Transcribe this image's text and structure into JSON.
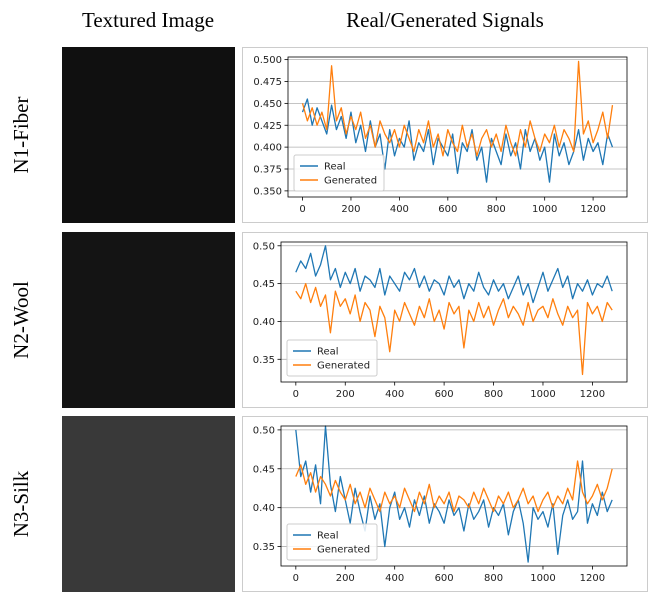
{
  "headers": [
    "Textured Image",
    "Real/Generated Signals"
  ],
  "chart_data": [
    {
      "type": "line",
      "label": "N1-Fiber",
      "texture_color": "#101010",
      "grid": true,
      "legend": "lower left",
      "x": [
        0,
        20,
        40,
        60,
        80,
        100,
        120,
        140,
        160,
        180,
        200,
        220,
        240,
        260,
        280,
        300,
        320,
        340,
        360,
        380,
        400,
        420,
        440,
        460,
        480,
        500,
        520,
        540,
        560,
        580,
        600,
        620,
        640,
        660,
        680,
        700,
        720,
        740,
        760,
        780,
        800,
        820,
        840,
        860,
        880,
        900,
        920,
        940,
        960,
        980,
        1000,
        1020,
        1040,
        1060,
        1080,
        1100,
        1120,
        1140,
        1160,
        1180,
        1200,
        1220,
        1240,
        1260,
        1280
      ],
      "xlim": [
        -60,
        1340
      ],
      "xticks": [
        0,
        200,
        400,
        600,
        800,
        1000,
        1200
      ],
      "ylim": [
        0.343,
        0.503
      ],
      "yticks": [
        {
          "value": 0.35,
          "label": "0.350"
        },
        0.375,
        {
          "value": 0.4,
          "label": "0.400"
        },
        0.425,
        {
          "value": 0.45,
          "label": "0.450"
        },
        0.475,
        {
          "value": 0.5,
          "label": "0.500"
        }
      ],
      "series": [
        {
          "name": "Real",
          "color": "#1f77b4",
          "values": [
            0.44,
            0.455,
            0.425,
            0.445,
            0.43,
            0.415,
            0.448,
            0.42,
            0.435,
            0.41,
            0.44,
            0.405,
            0.425,
            0.395,
            0.43,
            0.4,
            0.415,
            0.375,
            0.42,
            0.39,
            0.41,
            0.4,
            0.43,
            0.385,
            0.405,
            0.395,
            0.42,
            0.38,
            0.41,
            0.4,
            0.39,
            0.415,
            0.37,
            0.405,
            0.395,
            0.42,
            0.385,
            0.4,
            0.36,
            0.41,
            0.395,
            0.38,
            0.415,
            0.39,
            0.405,
            0.375,
            0.42,
            0.395,
            0.41,
            0.385,
            0.4,
            0.36,
            0.415,
            0.39,
            0.405,
            0.38,
            0.395,
            0.42,
            0.385,
            0.41,
            0.395,
            0.405,
            0.38,
            0.415,
            0.4
          ]
        },
        {
          "name": "Generated",
          "color": "#ff7f0e",
          "values": [
            0.45,
            0.43,
            0.445,
            0.425,
            0.44,
            0.42,
            0.493,
            0.43,
            0.445,
            0.415,
            0.435,
            0.42,
            0.44,
            0.41,
            0.425,
            0.4,
            0.43,
            0.415,
            0.405,
            0.42,
            0.4,
            0.425,
            0.41,
            0.395,
            0.42,
            0.405,
            0.43,
            0.4,
            0.415,
            0.39,
            0.42,
            0.405,
            0.395,
            0.425,
            0.4,
            0.415,
            0.39,
            0.41,
            0.42,
            0.4,
            0.415,
            0.395,
            0.425,
            0.405,
            0.39,
            0.42,
            0.4,
            0.43,
            0.41,
            0.395,
            0.415,
            0.405,
            0.425,
            0.4,
            0.42,
            0.41,
            0.395,
            0.498,
            0.415,
            0.43,
            0.405,
            0.42,
            0.44,
            0.41,
            0.448
          ]
        }
      ]
    },
    {
      "type": "line",
      "label": "N2-Wool",
      "texture_color": "#141414",
      "grid": true,
      "legend": "lower left",
      "x": [
        0,
        20,
        40,
        60,
        80,
        100,
        120,
        140,
        160,
        180,
        200,
        220,
        240,
        260,
        280,
        300,
        320,
        340,
        360,
        380,
        400,
        420,
        440,
        460,
        480,
        500,
        520,
        540,
        560,
        580,
        600,
        620,
        640,
        660,
        680,
        700,
        720,
        740,
        760,
        780,
        800,
        820,
        840,
        860,
        880,
        900,
        920,
        940,
        960,
        980,
        1000,
        1020,
        1040,
        1060,
        1080,
        1100,
        1120,
        1140,
        1160,
        1180,
        1200,
        1220,
        1240,
        1260,
        1280
      ],
      "xlim": [
        -60,
        1340
      ],
      "xticks": [
        0,
        200,
        400,
        600,
        800,
        1000,
        1200
      ],
      "ylim": [
        0.32,
        0.505
      ],
      "yticks": [
        0.35,
        {
          "value": 0.4,
          "label": "0.40"
        },
        0.45,
        {
          "value": 0.5,
          "label": "0.50"
        }
      ],
      "series": [
        {
          "name": "Real",
          "color": "#1f77b4",
          "values": [
            0.465,
            0.48,
            0.47,
            0.49,
            0.46,
            0.475,
            0.5,
            0.455,
            0.47,
            0.445,
            0.465,
            0.45,
            0.47,
            0.44,
            0.46,
            0.455,
            0.445,
            0.47,
            0.435,
            0.46,
            0.45,
            0.44,
            0.465,
            0.455,
            0.47,
            0.445,
            0.46,
            0.44,
            0.455,
            0.45,
            0.435,
            0.46,
            0.445,
            0.455,
            0.43,
            0.45,
            0.44,
            0.465,
            0.445,
            0.435,
            0.455,
            0.44,
            0.45,
            0.43,
            0.445,
            0.46,
            0.435,
            0.45,
            0.425,
            0.445,
            0.465,
            0.44,
            0.455,
            0.47,
            0.445,
            0.46,
            0.43,
            0.45,
            0.44,
            0.455,
            0.435,
            0.45,
            0.445,
            0.46,
            0.44
          ]
        },
        {
          "name": "Generated",
          "color": "#ff7f0e",
          "values": [
            0.44,
            0.43,
            0.45,
            0.425,
            0.445,
            0.42,
            0.435,
            0.385,
            0.44,
            0.42,
            0.43,
            0.41,
            0.435,
            0.4,
            0.425,
            0.415,
            0.38,
            0.42,
            0.405,
            0.36,
            0.415,
            0.4,
            0.425,
            0.41,
            0.395,
            0.42,
            0.405,
            0.43,
            0.4,
            0.415,
            0.39,
            0.425,
            0.41,
            0.42,
            0.365,
            0.415,
            0.4,
            0.425,
            0.405,
            0.42,
            0.395,
            0.415,
            0.43,
            0.405,
            0.42,
            0.41,
            0.395,
            0.425,
            0.4,
            0.415,
            0.42,
            0.405,
            0.43,
            0.41,
            0.395,
            0.42,
            0.405,
            0.415,
            0.33,
            0.425,
            0.41,
            0.42,
            0.4,
            0.425,
            0.415
          ]
        }
      ]
    },
    {
      "type": "line",
      "label": "N3-Silk",
      "texture_color": "#393939",
      "grid": true,
      "legend": "lower left",
      "x": [
        0,
        20,
        40,
        60,
        80,
        100,
        120,
        140,
        160,
        180,
        200,
        220,
        240,
        260,
        280,
        300,
        320,
        340,
        360,
        380,
        400,
        420,
        440,
        460,
        480,
        500,
        520,
        540,
        560,
        580,
        600,
        620,
        640,
        660,
        680,
        700,
        720,
        740,
        760,
        780,
        800,
        820,
        840,
        860,
        880,
        900,
        920,
        940,
        960,
        980,
        1000,
        1020,
        1040,
        1060,
        1080,
        1100,
        1120,
        1140,
        1160,
        1180,
        1200,
        1220,
        1240,
        1260,
        1280
      ],
      "xlim": [
        -60,
        1340
      ],
      "xticks": [
        0,
        200,
        400,
        600,
        800,
        1000,
        1200
      ],
      "ylim": [
        0.325,
        0.505
      ],
      "yticks": [
        0.35,
        {
          "value": 0.4,
          "label": "0.40"
        },
        0.45,
        {
          "value": 0.5,
          "label": "0.50"
        }
      ],
      "series": [
        {
          "name": "Real",
          "color": "#1f77b4",
          "values": [
            0.5,
            0.44,
            0.46,
            0.42,
            0.455,
            0.405,
            0.505,
            0.43,
            0.395,
            0.44,
            0.41,
            0.38,
            0.425,
            0.395,
            0.37,
            0.415,
            0.385,
            0.405,
            0.35,
            0.4,
            0.42,
            0.385,
            0.4,
            0.375,
            0.41,
            0.39,
            0.415,
            0.38,
            0.405,
            0.395,
            0.38,
            0.41,
            0.39,
            0.4,
            0.37,
            0.405,
            0.385,
            0.395,
            0.41,
            0.375,
            0.4,
            0.39,
            0.405,
            0.365,
            0.395,
            0.41,
            0.38,
            0.33,
            0.4,
            0.385,
            0.395,
            0.375,
            0.405,
            0.34,
            0.39,
            0.41,
            0.385,
            0.395,
            0.46,
            0.38,
            0.405,
            0.39,
            0.42,
            0.395,
            0.41
          ]
        },
        {
          "name": "Generated",
          "color": "#ff7f0e",
          "values": [
            0.44,
            0.455,
            0.43,
            0.445,
            0.42,
            0.44,
            0.43,
            0.415,
            0.435,
            0.42,
            0.41,
            0.43,
            0.405,
            0.42,
            0.4,
            0.425,
            0.41,
            0.395,
            0.42,
            0.405,
            0.415,
            0.4,
            0.425,
            0.41,
            0.395,
            0.42,
            0.405,
            0.43,
            0.4,
            0.415,
            0.405,
            0.42,
            0.395,
            0.415,
            0.41,
            0.4,
            0.42,
            0.405,
            0.425,
            0.41,
            0.395,
            0.415,
            0.405,
            0.42,
            0.4,
            0.41,
            0.425,
            0.405,
            0.415,
            0.395,
            0.41,
            0.42,
            0.4,
            0.415,
            0.405,
            0.425,
            0.41,
            0.46,
            0.42,
            0.405,
            0.415,
            0.43,
            0.41,
            0.425,
            0.45
          ]
        }
      ]
    }
  ]
}
